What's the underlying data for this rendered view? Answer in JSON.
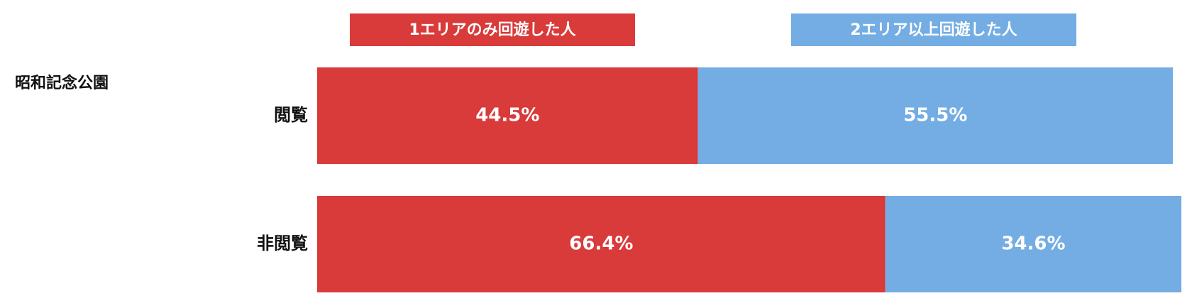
{
  "chart_data": {
    "type": "stacked_barh",
    "group_label": "昭和記念公園",
    "categories": [
      "閲覧",
      "非閲覧"
    ],
    "series": [
      {
        "name": "1エリアのみ回遊した人",
        "color": "#d93a3a",
        "values": [
          44.5,
          66.4
        ]
      },
      {
        "name": "2エリア以上回遊した人",
        "color": "#73ade3",
        "values": [
          55.5,
          34.6
        ]
      }
    ],
    "value_labels": [
      [
        "44.5%",
        "66.4%"
      ],
      [
        "55.5%",
        "34.6%"
      ]
    ],
    "xlim": [
      0,
      100
    ]
  }
}
